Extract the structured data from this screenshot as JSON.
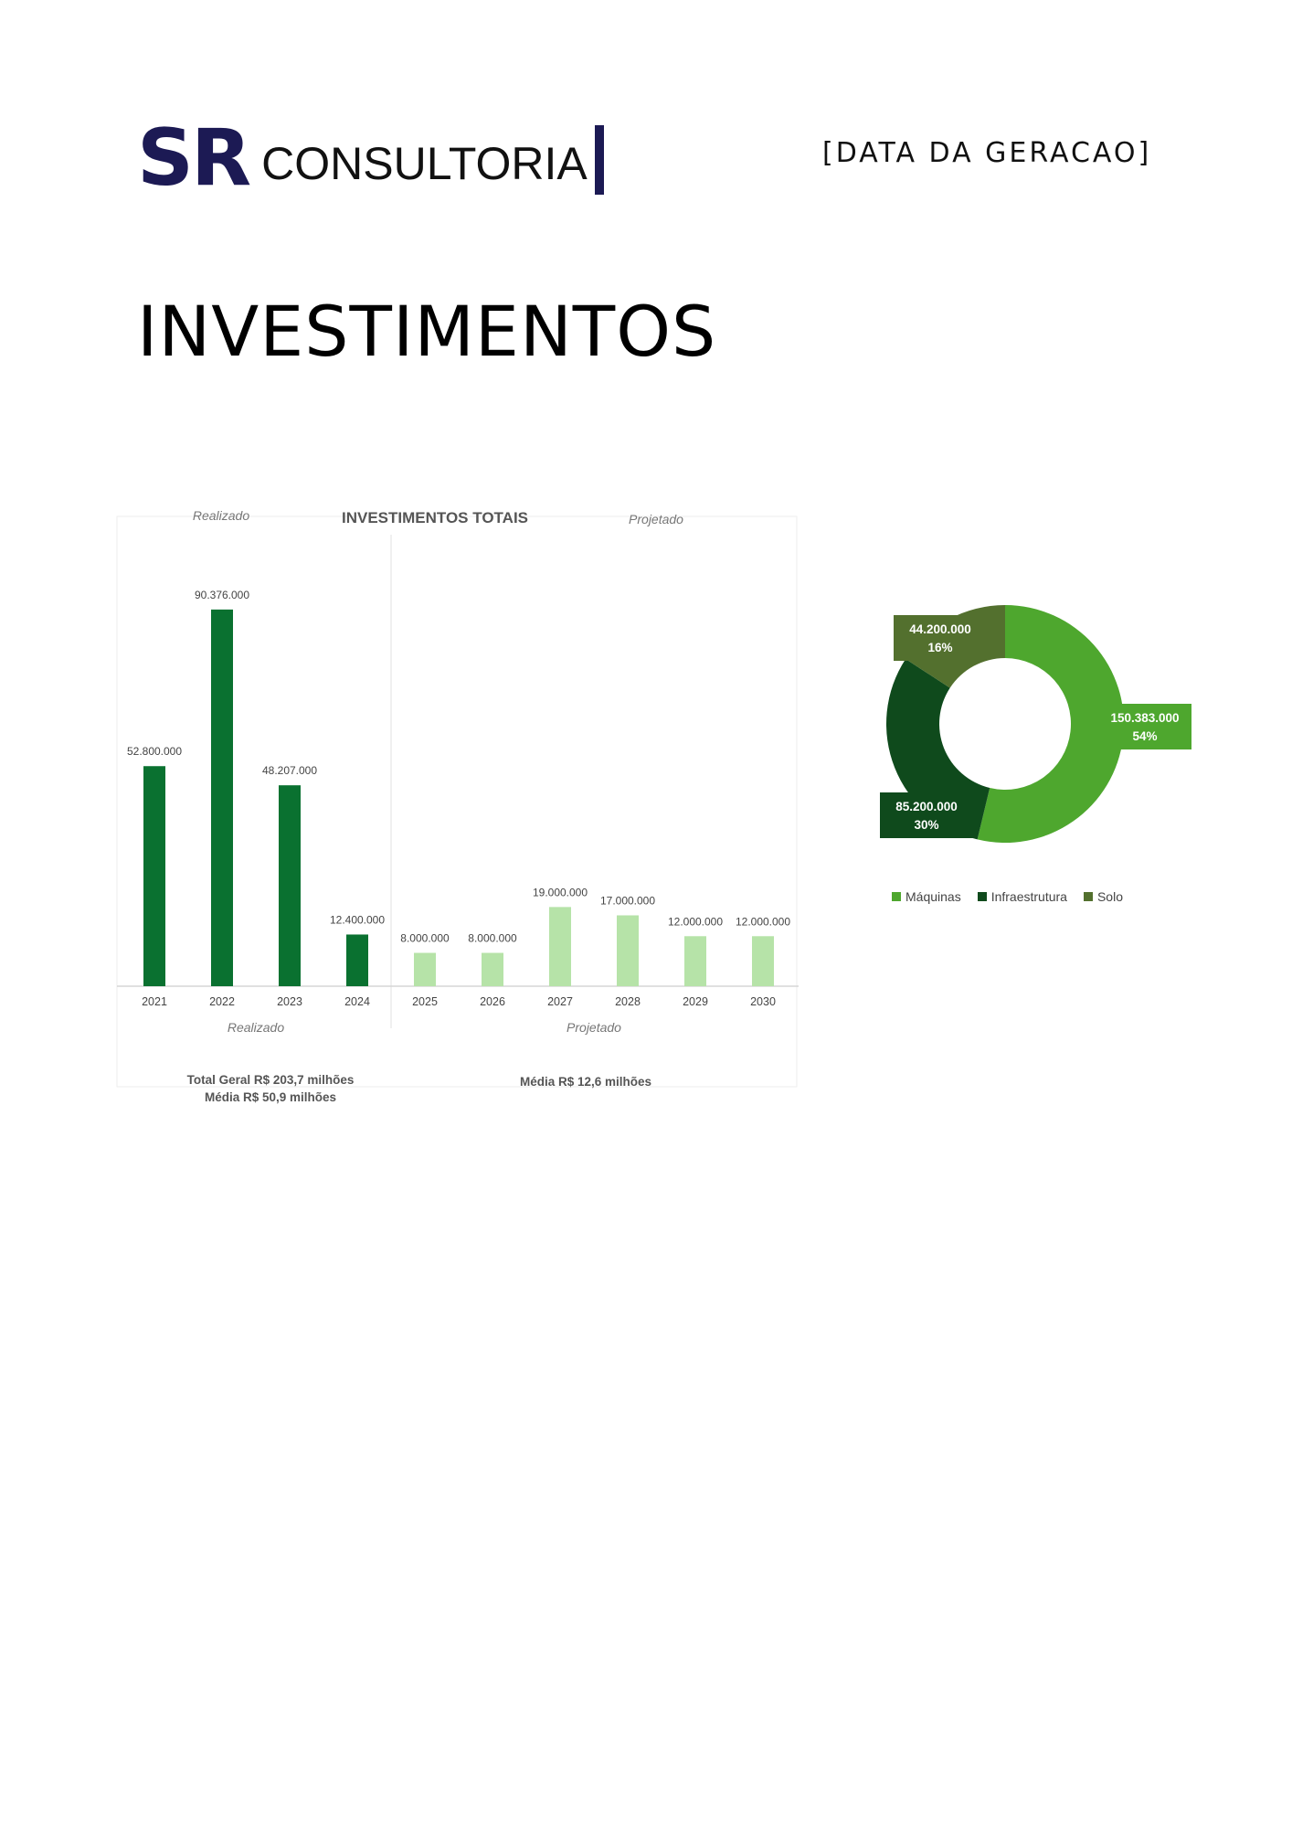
{
  "header": {
    "logo_sr": "SR",
    "logo_text": "CONSULTORIA",
    "date_placeholder": "[DATA DA GERACAO]"
  },
  "page_title": "INVESTIMENTOS",
  "chart_data": [
    {
      "type": "bar",
      "title": "INVESTIMENTOS TOTAIS",
      "categories": [
        "2021",
        "2022",
        "2023",
        "2024",
        "2025",
        "2026",
        "2027",
        "2028",
        "2029",
        "2030"
      ],
      "values": [
        52800000,
        90376000,
        48207000,
        12400000,
        8000000,
        8000000,
        19000000,
        17000000,
        12000000,
        12000000
      ],
      "value_labels": [
        "52.800.000",
        "90.376.000",
        "48.207.000",
        "12.400.000",
        "8.000.000",
        "8.000.000",
        "19.000.000",
        "17.000.000",
        "12.000.000",
        "12.000.000"
      ],
      "groups": [
        {
          "name": "Realizado",
          "categories": [
            "2021",
            "2022",
            "2023",
            "2024"
          ],
          "color": "#0a7130"
        },
        {
          "name": "Projetado",
          "categories": [
            "2025",
            "2026",
            "2027",
            "2028",
            "2029",
            "2030"
          ],
          "color": "#b6e3a8"
        }
      ],
      "ylim": [
        0,
        100000000
      ],
      "grid": false,
      "summary_realizado": [
        "Total Geral  R$ 203,7 milhões",
        "Média R$ 50,9 milhões"
      ],
      "summary_projetado": [
        "Média R$ 12,6 milhões"
      ]
    },
    {
      "type": "pie",
      "style": "donut",
      "series": [
        {
          "name": "Máquinas",
          "value": 150383000,
          "label": "150.383.000",
          "percent": "54%",
          "color": "#4ea72e"
        },
        {
          "name": "Infraestrutura",
          "value": 85200000,
          "label": "85.200.000",
          "percent": "30%",
          "color": "#0f4a1c"
        },
        {
          "name": "Solo",
          "value": 44200000,
          "label": "44.200.000",
          "percent": "16%",
          "color": "#53702e"
        }
      ],
      "legend_position": "bottom"
    }
  ]
}
